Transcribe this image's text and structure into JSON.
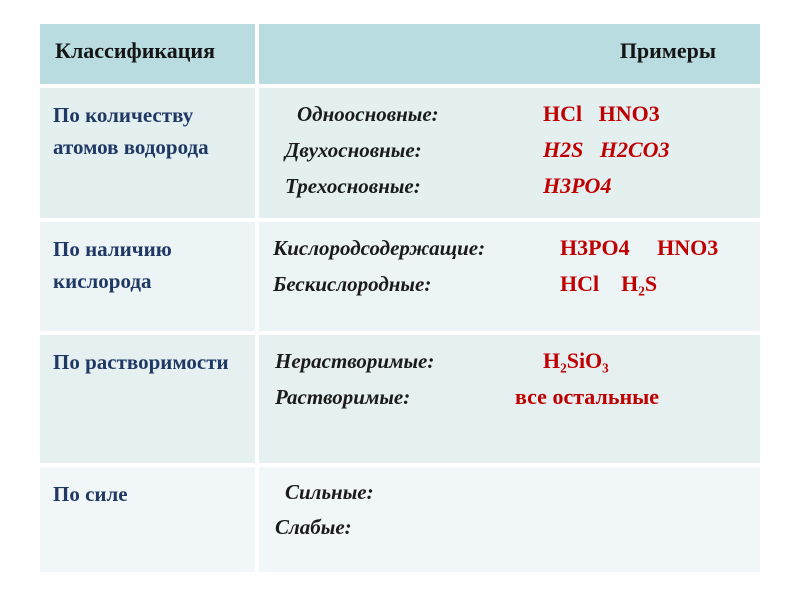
{
  "palette": {
    "header_bg": "#b9dce0",
    "row_bg_odd": "#e4eff0",
    "row_bg_even": "#ecf4f6",
    "last_row_bg": "#f1f6f8",
    "page_bg": "#ffffff",
    "category_text": "#1f3864",
    "label_text": "#1b1b1b",
    "formula_text": "#c00000",
    "header_text": "#151515"
  },
  "table": {
    "headers": {
      "classification": "Классификация",
      "examples": "Примеры"
    },
    "rows": [
      {
        "category": "По количеству атомов водорода",
        "lines": [
          {
            "label": "Одноосновные:",
            "value": "HCl   HNO3"
          },
          {
            "label": "Двухосновные:",
            "value": "H2S   H2CO3"
          },
          {
            "label": "Трехосновные:",
            "value": "H3PO4"
          }
        ]
      },
      {
        "category": "По наличию кислорода",
        "lines": [
          {
            "label": "Кислородсодержащие:",
            "value": "H3PO4     HNO3"
          },
          {
            "label": "Бескислородные:",
            "value": "HCl    H₂S"
          }
        ]
      },
      {
        "category": "По растворимости",
        "lines": [
          {
            "label": "Нерастворимые:",
            "value": "H₂SiO₃"
          },
          {
            "label": "Растворимые:",
            "value": "все остальные"
          }
        ]
      },
      {
        "category": "По силе",
        "lines": [
          {
            "label": "Сильные:",
            "value": ""
          },
          {
            "label": "Слабые:",
            "value": ""
          }
        ]
      }
    ]
  }
}
